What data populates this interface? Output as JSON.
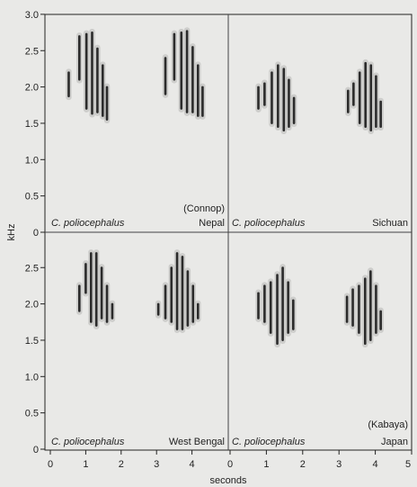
{
  "chart_data": {
    "type": "spectrogram",
    "xlabel": "seconds",
    "ylabel": "kHz",
    "grid": false,
    "xlim": [
      0,
      5
    ],
    "ylim": [
      0,
      3.0
    ],
    "x_ticks": [
      0,
      1,
      2,
      3,
      4,
      5
    ],
    "y_ticks_top": [
      "3.0",
      "2.5",
      "2.0",
      "1.5",
      "1.0",
      "0.5",
      "0"
    ],
    "y_ticks_bottom": [
      "2.5",
      "2.0",
      "1.5",
      "1.0",
      "0.5",
      "0"
    ],
    "panels": [
      {
        "id": "top-left",
        "species": "C. poliocephalus",
        "location": "Nepal",
        "credit": "(Connop)",
        "notes": [
          {
            "x": 0.52,
            "y_low": 1.82,
            "y_high": 2.25
          },
          {
            "x": 0.82,
            "y_low": 2.05,
            "y_high": 2.75
          },
          {
            "x": 1.02,
            "y_low": 1.65,
            "y_high": 2.78
          },
          {
            "x": 1.18,
            "y_low": 1.58,
            "y_high": 2.8
          },
          {
            "x": 1.33,
            "y_low": 1.6,
            "y_high": 2.58
          },
          {
            "x": 1.48,
            "y_low": 1.55,
            "y_high": 2.35
          },
          {
            "x": 1.6,
            "y_low": 1.5,
            "y_high": 2.05
          },
          {
            "x": 3.25,
            "y_low": 1.85,
            "y_high": 2.45
          },
          {
            "x": 3.5,
            "y_low": 2.05,
            "y_high": 2.78
          },
          {
            "x": 3.7,
            "y_low": 1.65,
            "y_high": 2.8
          },
          {
            "x": 3.86,
            "y_low": 1.6,
            "y_high": 2.82
          },
          {
            "x": 4.02,
            "y_low": 1.6,
            "y_high": 2.6
          },
          {
            "x": 4.17,
            "y_low": 1.55,
            "y_high": 2.35
          },
          {
            "x": 4.3,
            "y_low": 1.55,
            "y_high": 2.05
          }
        ]
      },
      {
        "id": "top-right",
        "species": "C. poliocephalus",
        "location": "Sichuan",
        "credit": "",
        "notes": [
          {
            "x": 0.78,
            "y_low": 1.65,
            "y_high": 2.05
          },
          {
            "x": 0.95,
            "y_low": 1.7,
            "y_high": 2.1
          },
          {
            "x": 1.15,
            "y_low": 1.45,
            "y_high": 2.25
          },
          {
            "x": 1.32,
            "y_low": 1.4,
            "y_high": 2.35
          },
          {
            "x": 1.48,
            "y_low": 1.35,
            "y_high": 2.3
          },
          {
            "x": 1.62,
            "y_low": 1.4,
            "y_high": 2.15
          },
          {
            "x": 1.76,
            "y_low": 1.45,
            "y_high": 1.9
          },
          {
            "x": 3.25,
            "y_low": 1.6,
            "y_high": 2.0
          },
          {
            "x": 3.4,
            "y_low": 1.7,
            "y_high": 2.1
          },
          {
            "x": 3.57,
            "y_low": 1.45,
            "y_high": 2.25
          },
          {
            "x": 3.73,
            "y_low": 1.4,
            "y_high": 2.38
          },
          {
            "x": 3.88,
            "y_low": 1.35,
            "y_high": 2.35
          },
          {
            "x": 4.02,
            "y_low": 1.4,
            "y_high": 2.2
          },
          {
            "x": 4.15,
            "y_low": 1.4,
            "y_high": 1.85
          }
        ]
      },
      {
        "id": "bottom-left",
        "species": "C. poliocephalus",
        "location": "West Bengal",
        "credit": "",
        "notes": [
          {
            "x": 0.82,
            "y_low": 1.85,
            "y_high": 2.3
          },
          {
            "x": 1.0,
            "y_low": 2.1,
            "y_high": 2.6
          },
          {
            "x": 1.15,
            "y_low": 1.7,
            "y_high": 2.75
          },
          {
            "x": 1.3,
            "y_low": 1.65,
            "y_high": 2.75
          },
          {
            "x": 1.45,
            "y_low": 1.75,
            "y_high": 2.55
          },
          {
            "x": 1.6,
            "y_low": 1.7,
            "y_high": 2.3
          },
          {
            "x": 1.75,
            "y_low": 1.75,
            "y_high": 2.05
          },
          {
            "x": 3.05,
            "y_low": 1.8,
            "y_high": 2.05
          },
          {
            "x": 3.25,
            "y_low": 1.75,
            "y_high": 2.3
          },
          {
            "x": 3.42,
            "y_low": 1.7,
            "y_high": 2.55
          },
          {
            "x": 3.58,
            "y_low": 1.6,
            "y_high": 2.75
          },
          {
            "x": 3.73,
            "y_low": 1.6,
            "y_high": 2.7
          },
          {
            "x": 3.88,
            "y_low": 1.65,
            "y_high": 2.5
          },
          {
            "x": 4.03,
            "y_low": 1.7,
            "y_high": 2.3
          },
          {
            "x": 4.17,
            "y_low": 1.75,
            "y_high": 2.05
          }
        ]
      },
      {
        "id": "bottom-right",
        "species": "C. poliocephalus",
        "location": "Japan",
        "credit": "(Kabaya)",
        "notes": [
          {
            "x": 0.78,
            "y_low": 1.75,
            "y_high": 2.2
          },
          {
            "x": 0.95,
            "y_low": 1.7,
            "y_high": 2.3
          },
          {
            "x": 1.12,
            "y_low": 1.55,
            "y_high": 2.35
          },
          {
            "x": 1.3,
            "y_low": 1.4,
            "y_high": 2.45
          },
          {
            "x": 1.45,
            "y_low": 1.45,
            "y_high": 2.55
          },
          {
            "x": 1.6,
            "y_low": 1.55,
            "y_high": 2.35
          },
          {
            "x": 1.74,
            "y_low": 1.6,
            "y_high": 2.1
          },
          {
            "x": 3.22,
            "y_low": 1.7,
            "y_high": 2.15
          },
          {
            "x": 3.38,
            "y_low": 1.65,
            "y_high": 2.25
          },
          {
            "x": 3.55,
            "y_low": 1.55,
            "y_high": 2.3
          },
          {
            "x": 3.72,
            "y_low": 1.4,
            "y_high": 2.4
          },
          {
            "x": 3.87,
            "y_low": 1.45,
            "y_high": 2.5
          },
          {
            "x": 4.02,
            "y_low": 1.55,
            "y_high": 2.3
          },
          {
            "x": 4.15,
            "y_low": 1.6,
            "y_high": 1.95
          }
        ]
      }
    ]
  }
}
